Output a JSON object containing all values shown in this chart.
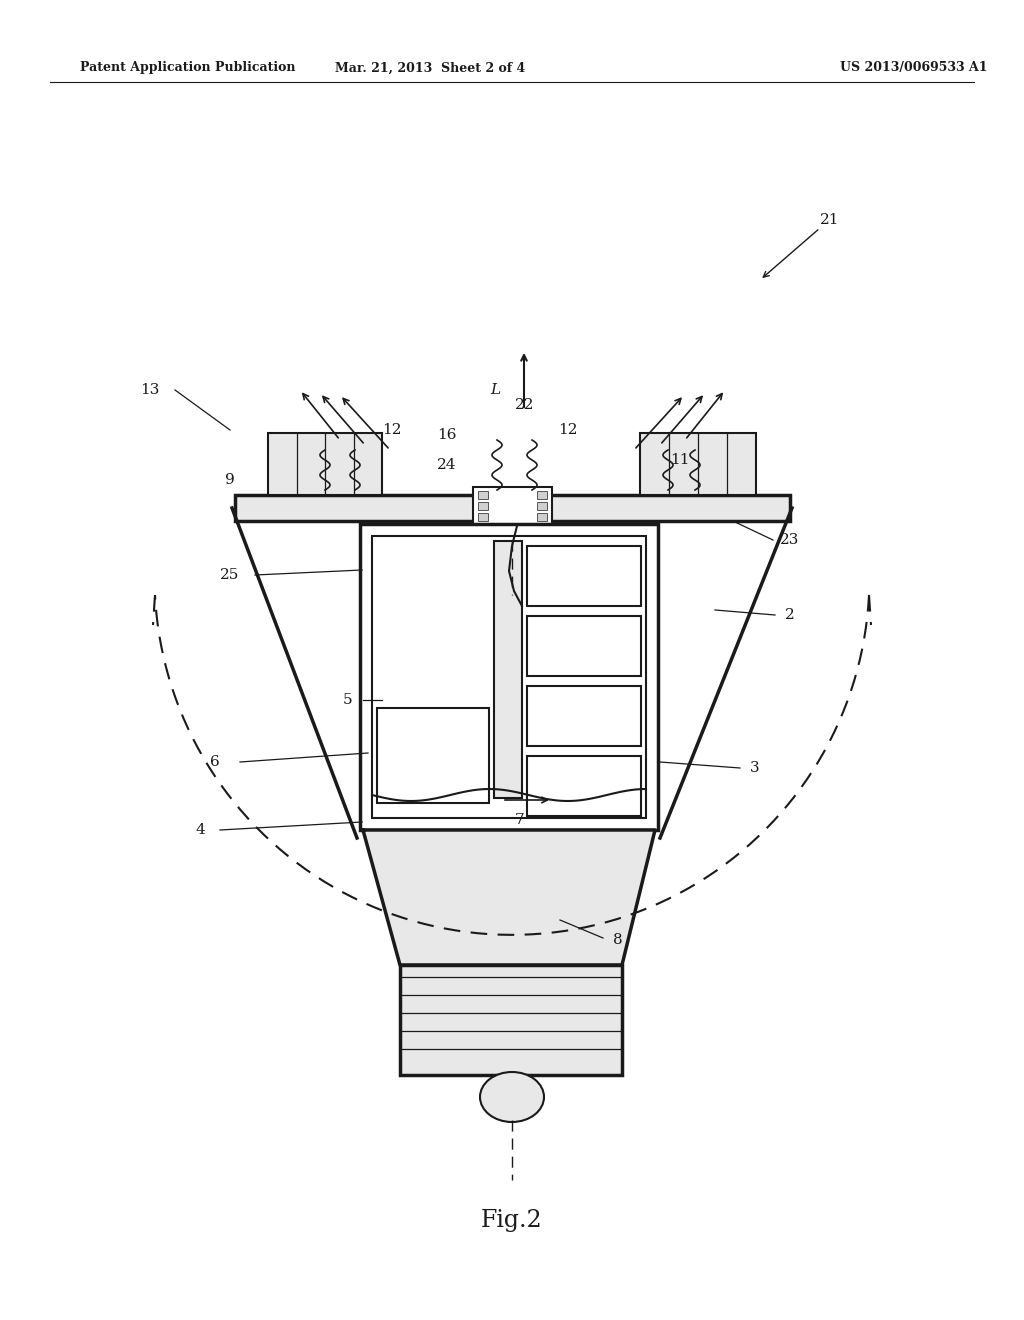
{
  "background_color": "#ffffff",
  "header_left": "Patent Application Publication",
  "header_center": "Mar. 21, 2013  Sheet 2 of 4",
  "header_right": "US 2013/0069533 A1",
  "figure_label": "Fig.2",
  "color_main": "#1a1a1a",
  "color_light_gray": "#e8e8e8",
  "color_mid_gray": "#d0d0d0",
  "color_white": "#ffffff",
  "color_fill": "#f0f0f0"
}
